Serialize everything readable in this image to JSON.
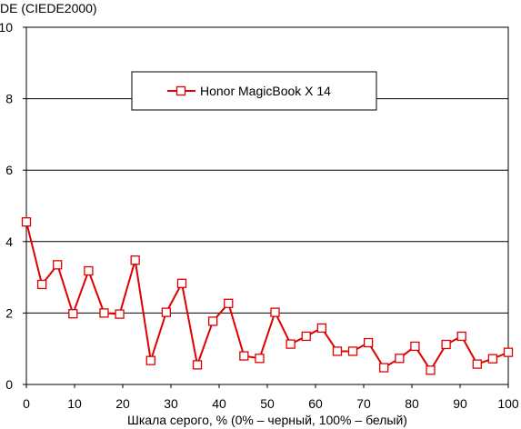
{
  "chart_data": {
    "type": "line",
    "title": "",
    "ylabel": "DE (CIEDE2000)",
    "xlabel": "Шкала серого, % (0% – черный, 100% – белый)",
    "xlim": [
      0,
      100
    ],
    "ylim": [
      0,
      10
    ],
    "x_ticks": [
      "0",
      "10",
      "20",
      "30",
      "40",
      "50",
      "60",
      "70",
      "80",
      "90",
      "100"
    ],
    "y_ticks": [
      "0",
      "2",
      "4",
      "6",
      "8",
      "10"
    ],
    "grid": "horizontal",
    "legend_position": "top-center",
    "series": [
      {
        "name": "Honor MagicBook X 14",
        "color": "#e00000",
        "marker": "hollow-square",
        "x": [
          0,
          3.23,
          6.45,
          9.68,
          12.9,
          16.13,
          19.35,
          22.58,
          25.81,
          29.03,
          32.26,
          35.48,
          38.71,
          41.94,
          45.16,
          48.39,
          51.61,
          54.84,
          58.06,
          61.29,
          64.52,
          67.74,
          70.97,
          74.19,
          77.42,
          80.65,
          83.87,
          87.1,
          90.32,
          93.55,
          96.77,
          100
        ],
        "y": [
          4.55,
          2.8,
          3.35,
          1.98,
          3.18,
          2.0,
          1.97,
          3.48,
          0.67,
          2.02,
          2.83,
          0.55,
          1.77,
          2.27,
          0.8,
          0.73,
          2.02,
          1.13,
          1.35,
          1.58,
          0.93,
          0.93,
          1.17,
          0.47,
          0.73,
          1.07,
          0.4,
          1.12,
          1.35,
          0.57,
          0.72,
          0.9
        ]
      }
    ]
  }
}
